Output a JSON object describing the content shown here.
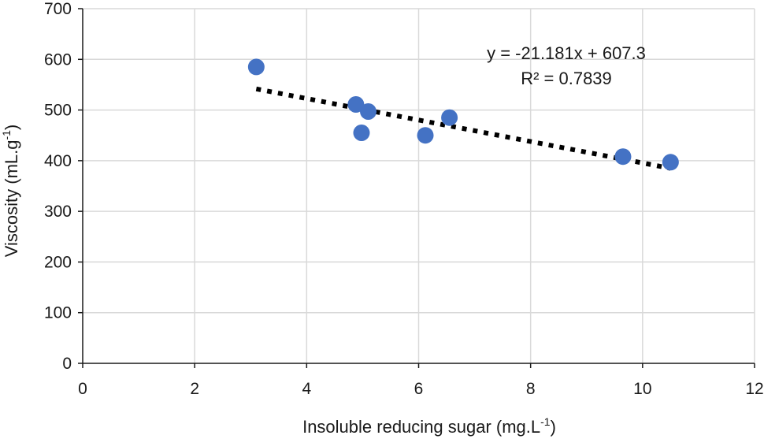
{
  "chart_data": {
    "type": "scatter",
    "title": "",
    "xlabel": "Insoluble reducing sugar (mg.L",
    "xlabel_sup": "-1",
    "xlabel_end": ")",
    "ylabel": "Viscosity (mL.g",
    "ylabel_sup": "-1",
    "ylabel_end": ")",
    "xlim": [
      0,
      12
    ],
    "ylim": [
      0,
      700
    ],
    "xticks": [
      0,
      2,
      4,
      6,
      8,
      10,
      12
    ],
    "yticks": [
      0,
      100,
      200,
      300,
      400,
      500,
      600,
      700
    ],
    "grid": true,
    "series": [
      {
        "name": "Viscosity",
        "color": "#4472C4",
        "points": [
          {
            "x": 3.1,
            "y": 585
          },
          {
            "x": 4.88,
            "y": 511
          },
          {
            "x": 5.1,
            "y": 497
          },
          {
            "x": 4.98,
            "y": 455
          },
          {
            "x": 6.12,
            "y": 450
          },
          {
            "x": 6.55,
            "y": 485
          },
          {
            "x": 9.65,
            "y": 408
          },
          {
            "x": 10.5,
            "y": 397
          }
        ]
      }
    ],
    "trendline": {
      "type": "linear",
      "slope": -21.181,
      "intercept": 607.3,
      "x_range": [
        3.1,
        10.5
      ],
      "style": "dotted",
      "color": "#000000",
      "equation": "y = -21.181x + 607.3",
      "r2_label": "R² = 0.7839"
    }
  }
}
